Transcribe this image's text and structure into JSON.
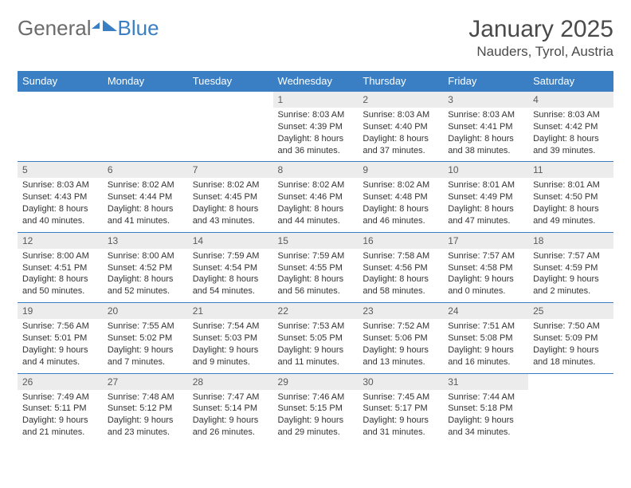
{
  "logo": {
    "word1": "General",
    "word2": "Blue"
  },
  "title": "January 2025",
  "location": "Nauders, Tyrol, Austria",
  "colors": {
    "header_bg": "#3a7fc4",
    "header_text": "#ffffff",
    "daynum_bg": "#ececec",
    "body_text": "#333333",
    "border": "#3a7fc4"
  },
  "dayHeaders": [
    "Sunday",
    "Monday",
    "Tuesday",
    "Wednesday",
    "Thursday",
    "Friday",
    "Saturday"
  ],
  "weeks": [
    [
      null,
      null,
      null,
      {
        "n": "1",
        "sr": "8:03 AM",
        "ss": "4:39 PM",
        "dl": "8 hours and 36 minutes."
      },
      {
        "n": "2",
        "sr": "8:03 AM",
        "ss": "4:40 PM",
        "dl": "8 hours and 37 minutes."
      },
      {
        "n": "3",
        "sr": "8:03 AM",
        "ss": "4:41 PM",
        "dl": "8 hours and 38 minutes."
      },
      {
        "n": "4",
        "sr": "8:03 AM",
        "ss": "4:42 PM",
        "dl": "8 hours and 39 minutes."
      }
    ],
    [
      {
        "n": "5",
        "sr": "8:03 AM",
        "ss": "4:43 PM",
        "dl": "8 hours and 40 minutes."
      },
      {
        "n": "6",
        "sr": "8:02 AM",
        "ss": "4:44 PM",
        "dl": "8 hours and 41 minutes."
      },
      {
        "n": "7",
        "sr": "8:02 AM",
        "ss": "4:45 PM",
        "dl": "8 hours and 43 minutes."
      },
      {
        "n": "8",
        "sr": "8:02 AM",
        "ss": "4:46 PM",
        "dl": "8 hours and 44 minutes."
      },
      {
        "n": "9",
        "sr": "8:02 AM",
        "ss": "4:48 PM",
        "dl": "8 hours and 46 minutes."
      },
      {
        "n": "10",
        "sr": "8:01 AM",
        "ss": "4:49 PM",
        "dl": "8 hours and 47 minutes."
      },
      {
        "n": "11",
        "sr": "8:01 AM",
        "ss": "4:50 PM",
        "dl": "8 hours and 49 minutes."
      }
    ],
    [
      {
        "n": "12",
        "sr": "8:00 AM",
        "ss": "4:51 PM",
        "dl": "8 hours and 50 minutes."
      },
      {
        "n": "13",
        "sr": "8:00 AM",
        "ss": "4:52 PM",
        "dl": "8 hours and 52 minutes."
      },
      {
        "n": "14",
        "sr": "7:59 AM",
        "ss": "4:54 PM",
        "dl": "8 hours and 54 minutes."
      },
      {
        "n": "15",
        "sr": "7:59 AM",
        "ss": "4:55 PM",
        "dl": "8 hours and 56 minutes."
      },
      {
        "n": "16",
        "sr": "7:58 AM",
        "ss": "4:56 PM",
        "dl": "8 hours and 58 minutes."
      },
      {
        "n": "17",
        "sr": "7:57 AM",
        "ss": "4:58 PM",
        "dl": "9 hours and 0 minutes."
      },
      {
        "n": "18",
        "sr": "7:57 AM",
        "ss": "4:59 PM",
        "dl": "9 hours and 2 minutes."
      }
    ],
    [
      {
        "n": "19",
        "sr": "7:56 AM",
        "ss": "5:01 PM",
        "dl": "9 hours and 4 minutes."
      },
      {
        "n": "20",
        "sr": "7:55 AM",
        "ss": "5:02 PM",
        "dl": "9 hours and 7 minutes."
      },
      {
        "n": "21",
        "sr": "7:54 AM",
        "ss": "5:03 PM",
        "dl": "9 hours and 9 minutes."
      },
      {
        "n": "22",
        "sr": "7:53 AM",
        "ss": "5:05 PM",
        "dl": "9 hours and 11 minutes."
      },
      {
        "n": "23",
        "sr": "7:52 AM",
        "ss": "5:06 PM",
        "dl": "9 hours and 13 minutes."
      },
      {
        "n": "24",
        "sr": "7:51 AM",
        "ss": "5:08 PM",
        "dl": "9 hours and 16 minutes."
      },
      {
        "n": "25",
        "sr": "7:50 AM",
        "ss": "5:09 PM",
        "dl": "9 hours and 18 minutes."
      }
    ],
    [
      {
        "n": "26",
        "sr": "7:49 AM",
        "ss": "5:11 PM",
        "dl": "9 hours and 21 minutes."
      },
      {
        "n": "27",
        "sr": "7:48 AM",
        "ss": "5:12 PM",
        "dl": "9 hours and 23 minutes."
      },
      {
        "n": "28",
        "sr": "7:47 AM",
        "ss": "5:14 PM",
        "dl": "9 hours and 26 minutes."
      },
      {
        "n": "29",
        "sr": "7:46 AM",
        "ss": "5:15 PM",
        "dl": "9 hours and 29 minutes."
      },
      {
        "n": "30",
        "sr": "7:45 AM",
        "ss": "5:17 PM",
        "dl": "9 hours and 31 minutes."
      },
      {
        "n": "31",
        "sr": "7:44 AM",
        "ss": "5:18 PM",
        "dl": "9 hours and 34 minutes."
      },
      null
    ]
  ],
  "labels": {
    "sunrise": "Sunrise:",
    "sunset": "Sunset:",
    "daylight": "Daylight:"
  }
}
